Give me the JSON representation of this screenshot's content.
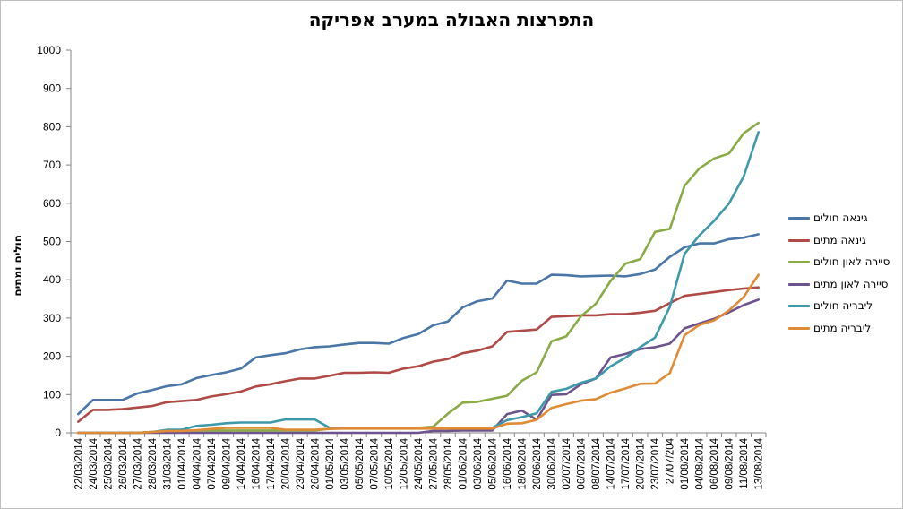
{
  "chart_data": {
    "type": "line",
    "title": "התפרצות האבולה במערב אפריקה",
    "xlabel": "",
    "ylabel": "חולים ומתים",
    "ylim": [
      0,
      1000
    ],
    "yticks": [
      0,
      100,
      200,
      300,
      400,
      500,
      600,
      700,
      800,
      900,
      1000
    ],
    "grid": "none",
    "legend_position": "right",
    "x_tick_labels": [
      "22/03/2014",
      "24/03/2014",
      "25/03/2014",
      "26/03/2014",
      "27/03/2014",
      "28/03/2014",
      "31/03/2014",
      "01/04/2014",
      "04/04/2014",
      "07/04/2014",
      "09/04/2014",
      "14/04/2014",
      "16/04/2014",
      "17/04/2014",
      "20/04/2014",
      "23/04/2014",
      "26/04/2014",
      "01/05/2014",
      "03/05/2014",
      "05/05/2014",
      "07/05/2014",
      "10/05/2014",
      "12/05/2014",
      "24/05/2014",
      "27/05/2014",
      "28/05/2014",
      "01/06/2014",
      "03/06/2014",
      "05/06/2014",
      "16/06/2014",
      "18/06/2014",
      "20/06/2014",
      "30/06/2014",
      "02/07/2014",
      "06/07/2014",
      "08/07/2014",
      "14/07/2014",
      "17/07/2014",
      "20/07/2014",
      "23/07/2014",
      "27/07/204",
      "01/08/2014",
      "04/08/2014",
      "06/08/2014",
      "09/08/2014",
      "11/08/2014",
      "13/08/2014"
    ],
    "series": [
      {
        "name": "גינאה חולים",
        "color": "#4a76a8",
        "values": [
          49,
          86,
          86,
          86,
          103,
          112,
          122,
          127,
          143,
          151,
          158,
          168,
          197,
          203,
          208,
          218,
          224,
          226,
          231,
          235,
          235,
          233,
          248,
          258,
          281,
          291,
          328,
          344,
          351,
          398,
          390,
          390,
          413,
          412,
          409,
          410,
          411,
          409,
          415,
          427,
          460,
          485,
          495,
          495,
          506,
          510,
          519
        ]
      },
      {
        "name": "גינאה מתים",
        "color": "#b04a46",
        "values": [
          29,
          60,
          60,
          62,
          66,
          70,
          80,
          83,
          86,
          95,
          101,
          108,
          121,
          127,
          135,
          142,
          142,
          149,
          157,
          157,
          158,
          157,
          168,
          174,
          186,
          193,
          208,
          215,
          226,
          264,
          267,
          270,
          303,
          305,
          307,
          307,
          310,
          310,
          314,
          319,
          339,
          358,
          363,
          368,
          373,
          377,
          380
        ]
      },
      {
        "name": "סיירה לאון חולים",
        "color": "#8aab45",
        "values": [
          0,
          0,
          0,
          0,
          0,
          2,
          6,
          6,
          6,
          6,
          6,
          6,
          6,
          6,
          6,
          6,
          6,
          11,
          13,
          13,
          13,
          13,
          13,
          13,
          16,
          50,
          79,
          81,
          89,
          97,
          136,
          158,
          239,
          252,
          305,
          337,
          397,
          442,
          454,
          525,
          533,
          646,
          691,
          717,
          730,
          783,
          810
        ]
      },
      {
        "name": "סיירה לאון מתים",
        "color": "#6e548e",
        "values": [
          0,
          0,
          0,
          0,
          0,
          0,
          0,
          0,
          0,
          0,
          0,
          0,
          0,
          0,
          0,
          0,
          0,
          0,
          0,
          0,
          0,
          0,
          0,
          0,
          5,
          5,
          6,
          6,
          6,
          49,
          58,
          34,
          99,
          101,
          127,
          142,
          197,
          206,
          219,
          224,
          233,
          273,
          286,
          298,
          315,
          334,
          348
        ]
      },
      {
        "name": "ליבריה חולים",
        "color": "#3e9aaa",
        "values": [
          0,
          0,
          0,
          0,
          0,
          2,
          8,
          8,
          18,
          21,
          25,
          27,
          27,
          27,
          35,
          35,
          35,
          13,
          13,
          13,
          13,
          13,
          13,
          13,
          13,
          13,
          13,
          13,
          13,
          33,
          41,
          51,
          107,
          115,
          131,
          142,
          174,
          196,
          224,
          249,
          329,
          468,
          516,
          554,
          599,
          670,
          786
        ]
      },
      {
        "name": "ליבריה מתים",
        "color": "#e08c36",
        "values": [
          0,
          0,
          0,
          0,
          0,
          2,
          5,
          5,
          7,
          10,
          13,
          13,
          13,
          13,
          8,
          8,
          8,
          10,
          11,
          11,
          11,
          11,
          11,
          11,
          11,
          11,
          11,
          11,
          11,
          24,
          25,
          34,
          65,
          75,
          84,
          88,
          105,
          116,
          128,
          129,
          156,
          255,
          282,
          294,
          320,
          355,
          413
        ]
      }
    ]
  }
}
